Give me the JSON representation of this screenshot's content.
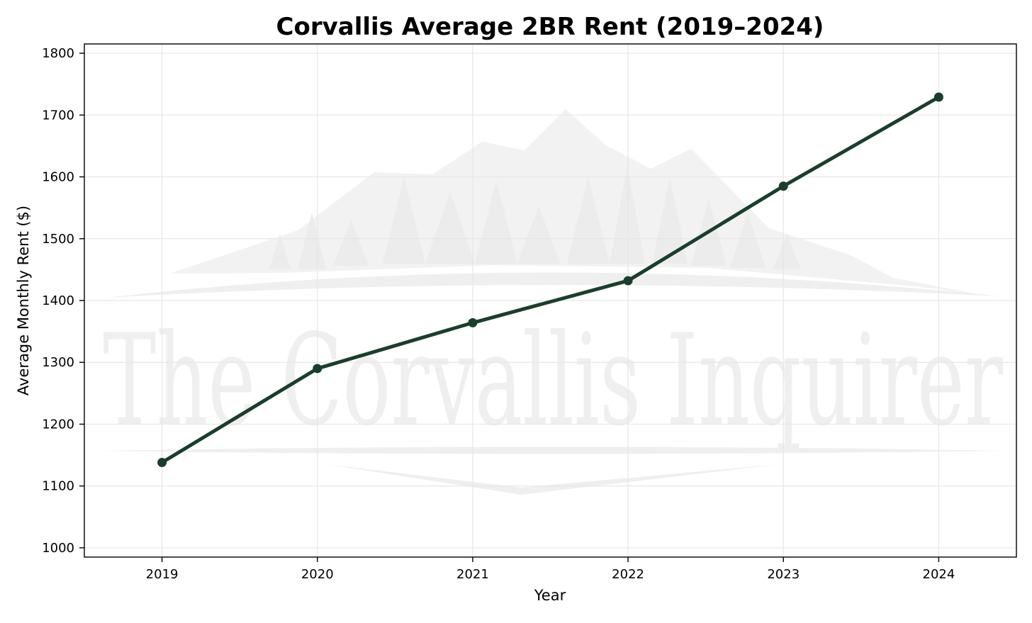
{
  "chart_data": {
    "type": "line",
    "title": "Corvallis Average 2BR Rent (2019–2024)",
    "xlabel": "Year",
    "ylabel": "Average Monthly Rent ($)",
    "x": [
      "2019",
      "2020",
      "2021",
      "2022",
      "2023",
      "2024"
    ],
    "series": [
      {
        "values": [
          1138,
          1290,
          1364,
          1432,
          1585,
          1729
        ],
        "color": "#183f2c"
      }
    ],
    "xlim": [
      2018.5,
      2024.5
    ],
    "ylim": [
      985,
      1815
    ],
    "yticks": [
      1000,
      1100,
      1200,
      1300,
      1400,
      1500,
      1600,
      1700,
      1800
    ],
    "grid": true,
    "watermark": "The Corvallis Inquirer"
  }
}
